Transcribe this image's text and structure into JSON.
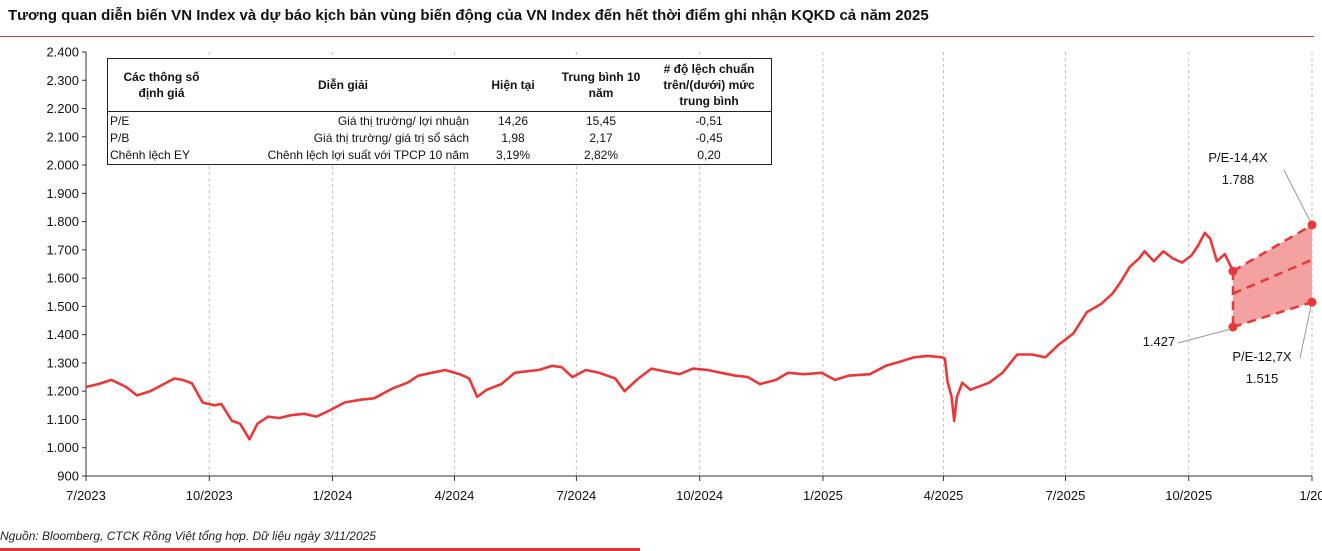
{
  "title": "Tương quan diễn biến VN Index và dự báo kịch bản vùng biến động của VN Index đến hết thời điểm ghi nhận KQKD cả năm 2025",
  "source": "Nguồn: Bloomberg, CTCK Rồng Việt tổng hợp. Dữ liệu ngày 3/11/2025",
  "colors": {
    "line": "#e8383a",
    "band_fill": "#f4a1a1",
    "axis": "#333333",
    "grid": "#c0c0c0"
  },
  "table": {
    "headers": [
      "Các thông số định giá",
      "Diễn giải",
      "Hiện tại",
      "Trung bình 10 năm",
      "# độ lệch chuẩn trên/(dưới) mức trung bình"
    ],
    "rows": [
      [
        "P/E",
        "Giá thị trường/ lợi nhuận",
        "14,26",
        "15,45",
        "-0,51"
      ],
      [
        "P/B",
        "Giá thị trường/ giá trị sổ sách",
        "1,98",
        "2,17",
        "-0,45"
      ],
      [
        "Chênh lệch EY",
        "Chênh lệch lợi suất với TPCP 10 năm",
        "3,19%",
        "2,82%",
        "0,20"
      ]
    ]
  },
  "chart_data": {
    "type": "line",
    "title": "Tương quan diễn biến VN Index và dự báo kịch bản vùng biến động của VN Index đến hết thời điểm ghi nhận KQKD cả năm 2025",
    "xlabel": "",
    "ylabel": "",
    "ylim": [
      900,
      2400
    ],
    "yticks": [
      "900",
      "1.000",
      "1.100",
      "1.200",
      "1.300",
      "1.400",
      "1.500",
      "1.600",
      "1.700",
      "1.800",
      "1.900",
      "2.000",
      "2.100",
      "2.200",
      "2.300",
      "2.400"
    ],
    "x_tick_labels": [
      "7/2023",
      "10/2023",
      "1/2024",
      "4/2024",
      "7/2024",
      "10/2024",
      "1/2025",
      "4/2025",
      "7/2025",
      "10/2025",
      "1/20"
    ],
    "grid": "vertical",
    "series": [
      {
        "values": [
          [
            "2023-07-01",
            1215
          ],
          [
            "2023-07-10",
            1225
          ],
          [
            "2023-07-20",
            1240
          ],
          [
            "2023-07-31",
            1215
          ],
          [
            "2023-08-08",
            1185
          ],
          [
            "2023-08-18",
            1200
          ],
          [
            "2023-08-28",
            1225
          ],
          [
            "2023-09-05",
            1245
          ],
          [
            "2023-09-11",
            1240
          ],
          [
            "2023-09-18",
            1228
          ],
          [
            "2023-09-26",
            1160
          ],
          [
            "2023-10-05",
            1150
          ],
          [
            "2023-10-10",
            1155
          ],
          [
            "2023-10-18",
            1095
          ],
          [
            "2023-10-24",
            1085
          ],
          [
            "2023-10-31",
            1030
          ],
          [
            "2023-11-06",
            1085
          ],
          [
            "2023-11-14",
            1110
          ],
          [
            "2023-11-22",
            1105
          ],
          [
            "2023-12-01",
            1115
          ],
          [
            "2023-12-11",
            1120
          ],
          [
            "2023-12-20",
            1110
          ],
          [
            "2023-12-29",
            1130
          ],
          [
            "2024-01-10",
            1160
          ],
          [
            "2024-01-22",
            1170
          ],
          [
            "2024-02-01",
            1175
          ],
          [
            "2024-02-15",
            1210
          ],
          [
            "2024-02-26",
            1230
          ],
          [
            "2024-03-05",
            1255
          ],
          [
            "2024-03-15",
            1265
          ],
          [
            "2024-03-25",
            1275
          ],
          [
            "2024-04-05",
            1260
          ],
          [
            "2024-04-12",
            1245
          ],
          [
            "2024-04-18",
            1180
          ],
          [
            "2024-04-25",
            1205
          ],
          [
            "2024-05-06",
            1225
          ],
          [
            "2024-05-16",
            1265
          ],
          [
            "2024-05-24",
            1270
          ],
          [
            "2024-06-03",
            1275
          ],
          [
            "2024-06-13",
            1290
          ],
          [
            "2024-06-20",
            1285
          ],
          [
            "2024-06-28",
            1250
          ],
          [
            "2024-07-08",
            1275
          ],
          [
            "2024-07-18",
            1265
          ],
          [
            "2024-07-30",
            1245
          ],
          [
            "2024-08-06",
            1200
          ],
          [
            "2024-08-15",
            1240
          ],
          [
            "2024-08-26",
            1280
          ],
          [
            "2024-09-05",
            1270
          ],
          [
            "2024-09-16",
            1260
          ],
          [
            "2024-09-26",
            1280
          ],
          [
            "2024-10-07",
            1275
          ],
          [
            "2024-10-17",
            1265
          ],
          [
            "2024-10-28",
            1255
          ],
          [
            "2024-11-06",
            1250
          ],
          [
            "2024-11-15",
            1225
          ],
          [
            "2024-11-27",
            1240
          ],
          [
            "2024-12-06",
            1265
          ],
          [
            "2024-12-18",
            1260
          ],
          [
            "2024-12-31",
            1265
          ],
          [
            "2025-01-10",
            1240
          ],
          [
            "2025-01-20",
            1255
          ],
          [
            "2025-02-05",
            1260
          ],
          [
            "2025-02-17",
            1290
          ],
          [
            "2025-02-28",
            1305
          ],
          [
            "2025-03-10",
            1320
          ],
          [
            "2025-03-20",
            1325
          ],
          [
            "2025-03-31",
            1320
          ],
          [
            "2025-04-02",
            1315
          ],
          [
            "2025-04-04",
            1235
          ],
          [
            "2025-04-07",
            1180
          ],
          [
            "2025-04-09",
            1095
          ],
          [
            "2025-04-11",
            1180
          ],
          [
            "2025-04-15",
            1230
          ],
          [
            "2025-04-21",
            1205
          ],
          [
            "2025-05-05",
            1230
          ],
          [
            "2025-05-15",
            1265
          ],
          [
            "2025-05-26",
            1330
          ],
          [
            "2025-06-06",
            1330
          ],
          [
            "2025-06-16",
            1320
          ],
          [
            "2025-06-26",
            1365
          ],
          [
            "2025-07-07",
            1405
          ],
          [
            "2025-07-17",
            1480
          ],
          [
            "2025-07-28",
            1510
          ],
          [
            "2025-08-05",
            1545
          ],
          [
            "2025-08-11",
            1585
          ],
          [
            "2025-08-18",
            1640
          ],
          [
            "2025-08-25",
            1670
          ],
          [
            "2025-08-29",
            1695
          ],
          [
            "2025-09-05",
            1660
          ],
          [
            "2025-09-12",
            1695
          ],
          [
            "2025-09-19",
            1670
          ],
          [
            "2025-09-26",
            1655
          ],
          [
            "2025-10-03",
            1680
          ],
          [
            "2025-10-08",
            1715
          ],
          [
            "2025-10-13",
            1760
          ],
          [
            "2025-10-17",
            1740
          ],
          [
            "2025-10-22",
            1660
          ],
          [
            "2025-10-28",
            1685
          ],
          [
            "2025-11-03",
            1625
          ]
        ]
      }
    ],
    "forecast_band": {
      "upper": [
        [
          "2025-11-03",
          1625
        ],
        [
          "2026-01-01",
          1788
        ]
      ],
      "middle": [
        [
          "2025-11-03",
          1545
        ],
        [
          "2026-01-01",
          1665
        ]
      ],
      "lower": [
        [
          "2025-11-03",
          1427
        ],
        [
          "2026-01-01",
          1515
        ]
      ]
    },
    "annotations": [
      {
        "label": "P/E-14,4X",
        "value": "1.788"
      },
      {
        "label": "",
        "value": "1.427"
      },
      {
        "label": "P/E-12,7X",
        "value": "1.515"
      }
    ]
  }
}
